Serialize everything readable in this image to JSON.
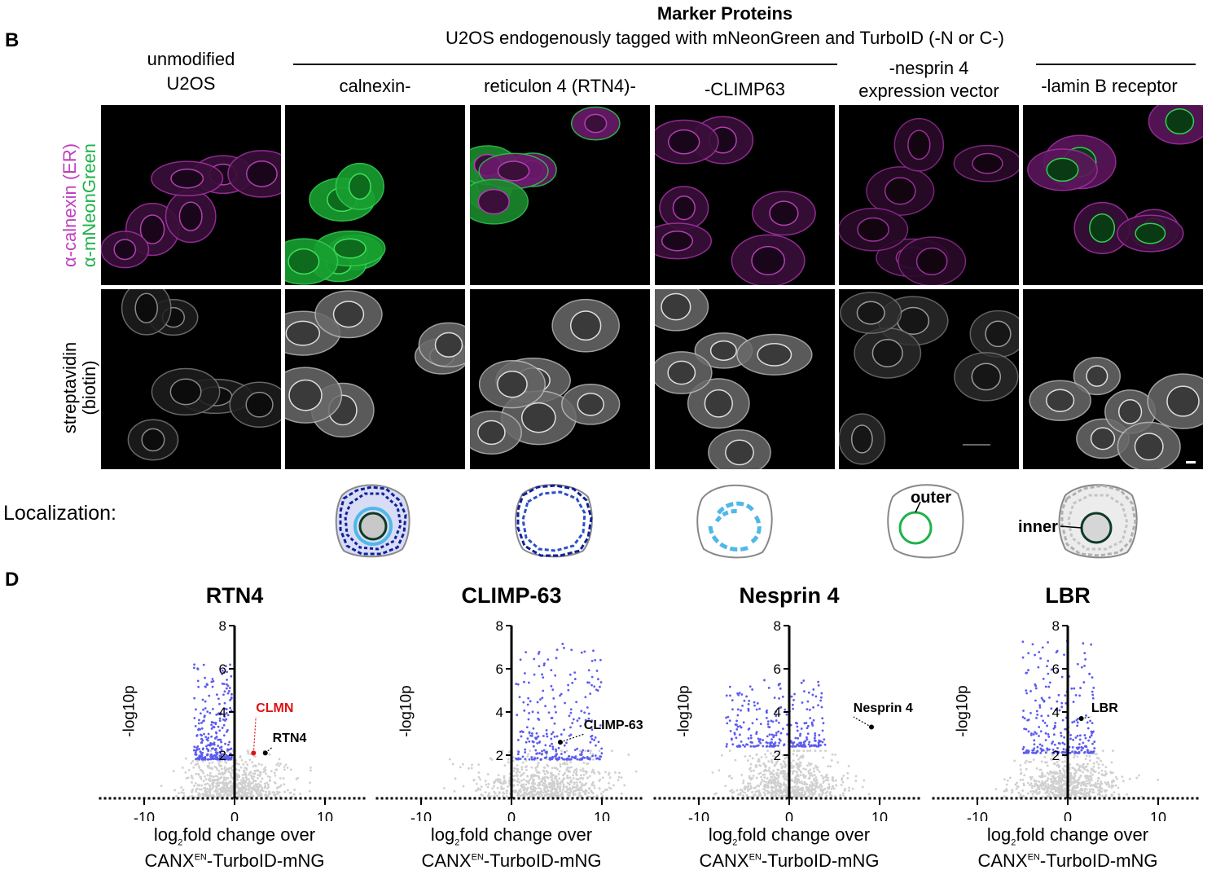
{
  "panel_b": {
    "letter": "B",
    "header_title": "Marker Proteins",
    "header_subtitle": "U2OS endogenously tagged with mNeonGreen and TurboID (-N or C-)",
    "columns": [
      {
        "label_line1": "unmodified",
        "label_line2": "U2OS"
      },
      {
        "label_line1": "calnexin-",
        "label_line2": ""
      },
      {
        "label_line1": "reticulon 4 (RTN4)-",
        "label_line2": ""
      },
      {
        "label_line1": "-CLIMP63",
        "label_line2": ""
      },
      {
        "label_line1": "-nesprin 4",
        "label_line2": "expression vector"
      },
      {
        "label_line1": "-lamin B receptor",
        "label_line2": ""
      }
    ],
    "row_labels": {
      "row1_magenta": "α-calnexin (ER)",
      "row1_green": "α-mNeonGreen",
      "row2_line1": "streptavidin",
      "row2_line2": "(biotin)"
    },
    "localization_label": "Localization:",
    "diagram_labels": {
      "outer": "outer",
      "inner": "inner"
    },
    "colors": {
      "magenta": "#c040c0",
      "green": "#1fb24a",
      "er_dark": "#10209a",
      "er_light": "#4fb8e8",
      "outer_ring": "#1fb24a"
    }
  },
  "panel_d": {
    "letter": "D",
    "ylabel": "-log10p",
    "xlabel_line1_pre": "log",
    "xlabel_line1_sub": "2",
    "xlabel_line1_post": "fold change over",
    "xlabel_line2_pre": "CANX",
    "xlabel_line2_sup": "EN",
    "xlabel_line2_post": "-TurboID-mNG"
  },
  "chart_data": [
    {
      "type": "scatter",
      "title": "RTN4",
      "xlabel": "log2fold change over CANXEN-TurboID-mNG",
      "ylabel": "-log10p",
      "xlim": [
        -15,
        15
      ],
      "ylim": [
        0,
        8
      ],
      "xticks": [
        -10,
        0,
        10
      ],
      "yticks": [
        2,
        4,
        6,
        8
      ],
      "series": [
        {
          "color": "#d0d0d0",
          "description_of_cloud": "background proteins",
          "center": [
            0,
            1
          ],
          "spread_x": 3.0
        },
        {
          "color": "#5b5bf0",
          "description_of_cloud": "enriched",
          "x_range": [
            -4.5,
            -0.3
          ],
          "y_range": [
            1.8,
            6.2
          ]
        }
      ],
      "annotations": [
        {
          "label": "CLMN",
          "x": 2.1,
          "y": 2.1,
          "color": "#e01010"
        },
        {
          "label": "RTN4",
          "x": 3.4,
          "y": 2.1,
          "color": "#000000"
        }
      ]
    },
    {
      "type": "scatter",
      "title": "CLIMP-63",
      "xlabel": "log2fold change over CANXEN-TurboID-mNG",
      "ylabel": "-log10p",
      "xlim": [
        -15,
        15
      ],
      "ylim": [
        0,
        8
      ],
      "xticks": [
        -10,
        0,
        10
      ],
      "yticks": [
        2,
        4,
        6,
        8
      ],
      "series": [
        {
          "color": "#d0d0d0",
          "center": [
            4,
            1
          ],
          "spread_x": 4.0
        },
        {
          "color": "#5b5bf0",
          "x_range": [
            0.5,
            10
          ],
          "y_range": [
            1.8,
            7.2
          ]
        }
      ],
      "annotations": [
        {
          "label": "CLIMP-63",
          "x": 5.4,
          "y": 2.6,
          "color": "#000000"
        }
      ]
    },
    {
      "type": "scatter",
      "title": "Nesprin 4",
      "xlabel": "log2fold change over CANXEN-TurboID-mNG",
      "ylabel": "-log10p",
      "xlim": [
        -15,
        15
      ],
      "ylim": [
        0,
        8
      ],
      "xticks": [
        -10,
        0,
        10
      ],
      "yticks": [
        2,
        4,
        6,
        8
      ],
      "series": [
        {
          "color": "#d0d0d0",
          "center": [
            0,
            1
          ],
          "spread_x": 3.5
        },
        {
          "color": "#5b5bf0",
          "x_range": [
            -7,
            4
          ],
          "y_range": [
            2.4,
            5.5
          ]
        }
      ],
      "annotations": [
        {
          "label": "Nesprin 4",
          "x": 9.1,
          "y": 3.3,
          "color": "#000000"
        }
      ]
    },
    {
      "type": "scatter",
      "title": "LBR",
      "xlabel": "log2fold change over CANXEN-TurboID-mNG",
      "ylabel": "-log10p",
      "xlim": [
        -15,
        15
      ],
      "ylim": [
        0,
        8
      ],
      "xticks": [
        -10,
        0,
        10
      ],
      "yticks": [
        2,
        4,
        6,
        8
      ],
      "series": [
        {
          "color": "#d0d0d0",
          "center": [
            0,
            1
          ],
          "spread_x": 3.0
        },
        {
          "color": "#5b5bf0",
          "x_range": [
            -5,
            3
          ],
          "y_range": [
            2.1,
            7.3
          ]
        }
      ],
      "annotations": [
        {
          "label": "LBR",
          "x": 1.5,
          "y": 3.7,
          "color": "#000000"
        }
      ]
    }
  ]
}
